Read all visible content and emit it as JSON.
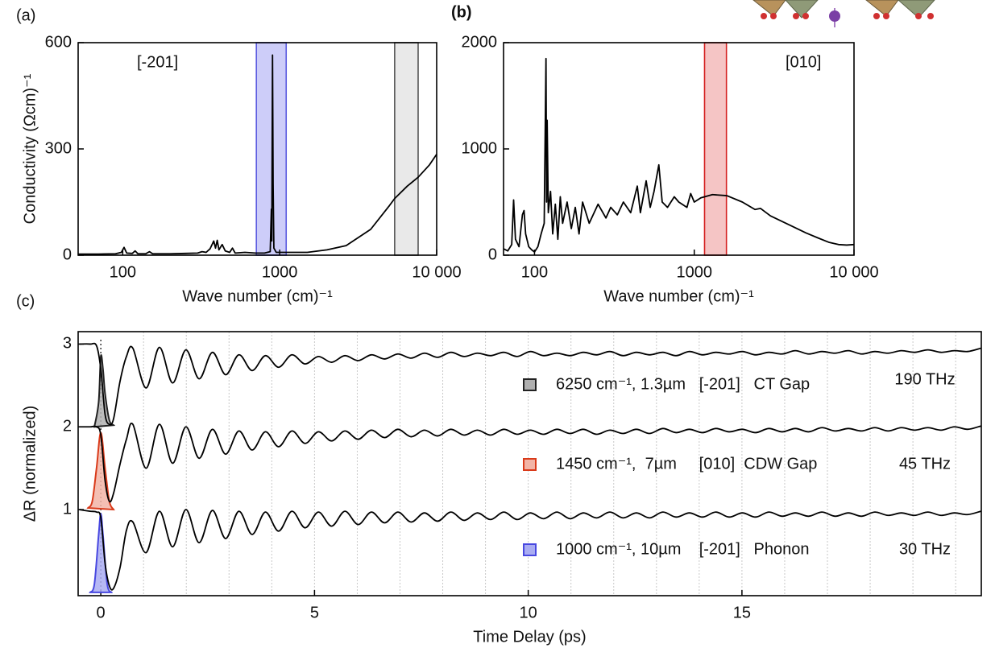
{
  "chart_data": [
    {
      "type": "line",
      "panel_label": "(a)",
      "x_scale": "log",
      "xlabel": "Wave number (cm)⁻¹",
      "ylabel": "Conductivity (Ωcm)⁻¹",
      "xlim": [
        52,
        10000
      ],
      "xticks": [
        100,
        1000,
        {
          "value": 10000,
          "label": "10 000"
        }
      ],
      "ylim": [
        0,
        600
      ],
      "yticks": [
        0,
        300,
        600
      ],
      "annotations": [
        {
          "text": "[-201]"
        }
      ],
      "bands": [
        {
          "range": [
            710,
            1100
          ],
          "fill": "rgba(90,90,235,0.3)",
          "stroke": "#5a5ae0"
        },
        {
          "range": [
            5400,
            7620
          ],
          "fill": "rgba(200,200,200,0.4)",
          "stroke": "#555555"
        }
      ],
      "series": [
        {
          "color": "#000000",
          "x": [
            52,
            70,
            90,
            98,
            102,
            106,
            115,
            120,
            125,
            140,
            148,
            155,
            200,
            250,
            300,
            320,
            340,
            360,
            380,
            390,
            400,
            410,
            430,
            450,
            480,
            500,
            520,
            600,
            700,
            800,
            870,
            885,
            890,
            895,
            900,
            908,
            918,
            950,
            1500,
            2000,
            2650,
            3800,
            5000,
            5400,
            6500,
            7620,
            9000,
            10000
          ],
          "values": [
            3,
            3,
            4,
            8,
            22,
            6,
            5,
            12,
            4,
            4,
            10,
            4,
            4,
            5,
            6,
            10,
            8,
            18,
            40,
            20,
            42,
            15,
            30,
            12,
            8,
            20,
            6,
            8,
            6,
            6,
            10,
            130,
            40,
            300,
            565,
            200,
            20,
            8,
            8,
            15,
            27,
            73,
            140,
            160,
            195,
            220,
            255,
            285
          ]
        }
      ]
    },
    {
      "type": "line",
      "panel_label": "(b)",
      "x_scale": "log",
      "xlabel": "Wave number (cm)⁻¹",
      "xlim": [
        64,
        10000
      ],
      "xticks": [
        100,
        1000,
        {
          "value": 10000,
          "label": "10 000"
        }
      ],
      "ylim": [
        0,
        2000
      ],
      "yticks": [
        0,
        1000,
        2000
      ],
      "annotations": [
        {
          "text": "[010]"
        }
      ],
      "bands": [
        {
          "range": [
            1160,
            1590
          ],
          "fill": "rgba(225,90,90,0.35)",
          "stroke": "#d42020"
        }
      ],
      "series": [
        {
          "color": "#000000",
          "x": [
            64,
            68,
            72,
            74,
            76,
            80,
            84,
            86,
            88,
            92,
            96,
            100,
            105,
            110,
            115,
            118,
            119,
            120,
            122,
            126,
            130,
            135,
            140,
            145,
            150,
            160,
            170,
            180,
            190,
            200,
            220,
            250,
            280,
            300,
            330,
            360,
            400,
            440,
            460,
            500,
            530,
            560,
            600,
            630,
            680,
            750,
            800,
            900,
            950,
            1000,
            1100,
            1300,
            1600,
            2000,
            2400,
            2600,
            3000,
            4000,
            5000,
            6000,
            7000,
            8000,
            9000,
            10000
          ],
          "values": [
            60,
            40,
            100,
            520,
            150,
            80,
            380,
            420,
            200,
            80,
            50,
            30,
            80,
            200,
            300,
            1850,
            500,
            1270,
            400,
            600,
            200,
            480,
            150,
            550,
            300,
            500,
            250,
            450,
            200,
            500,
            300,
            480,
            350,
            450,
            380,
            500,
            400,
            650,
            400,
            700,
            450,
            600,
            850,
            500,
            450,
            550,
            500,
            450,
            580,
            500,
            540,
            570,
            560,
            500,
            430,
            440,
            370,
            280,
            210,
            160,
            120,
            100,
            95,
            100
          ]
        }
      ]
    },
    {
      "type": "line",
      "panel_label": "(c)",
      "x_scale": "linear",
      "xlabel": "Time Delay (ps)",
      "ylabel": "ΔR (normalized)",
      "xlim": [
        -0.53,
        20.6
      ],
      "xticks": [
        0,
        5,
        10,
        15
      ],
      "minor_xticks": [
        1,
        2,
        3,
        4,
        5,
        6,
        7,
        8,
        9,
        10,
        11,
        12,
        13,
        14,
        15,
        16,
        17,
        18,
        19,
        20
      ],
      "ylim": [
        -0.04,
        3.15
      ],
      "yticks": [
        1,
        2,
        3
      ],
      "x": [
        -0.5,
        -0.25,
        -0.1,
        0,
        0.1,
        0.2,
        0.3,
        0.45,
        0.6,
        0.75,
        1.06,
        1.37,
        1.68,
        1.99,
        2.3,
        2.61,
        2.92,
        3.23,
        3.54,
        3.85,
        4.16,
        4.47,
        4.78,
        5.09,
        5.4,
        5.71,
        6.02,
        6.33,
        6.64,
        6.95,
        7.26,
        7.57,
        7.88,
        8.19,
        8.5,
        8.81,
        9.12,
        9.43,
        9.74,
        10.05,
        10.36,
        10.67,
        10.98,
        11.29,
        11.6,
        11.91,
        12.22,
        12.53,
        12.84,
        13.15,
        13.46,
        13.77,
        14.08,
        14.39,
        14.7,
        15.01,
        15.32,
        15.63,
        15.94,
        16.25,
        16.56,
        16.87,
        17.18,
        17.49,
        17.8,
        18.11,
        18.42,
        18.73,
        19.04,
        19.35,
        19.66,
        19.97,
        20.28,
        20.59
      ],
      "annotations": [
        {
          "text": "190 THz",
          "color": "#1a9ad6"
        },
        {
          "text": "45 THz",
          "color": "#1a9ad6"
        },
        {
          "text": "30 THz",
          "color": "#f0932b"
        }
      ],
      "series": [
        {
          "name": "6250 cm⁻¹, 1.3µm   [-201]   CT Gap",
          "color": "#b0b0b0",
          "stroke": "#222222",
          "line_color": "#000000",
          "values": [
            3.0,
            3.0,
            2.98,
            2.7,
            2.15,
            2.03,
            2.1,
            2.55,
            2.85,
            2.95,
            2.47,
            2.96,
            2.53,
            2.93,
            2.58,
            2.9,
            2.63,
            2.87,
            2.68,
            2.86,
            2.72,
            2.87,
            2.76,
            2.85,
            2.78,
            2.86,
            2.8,
            2.87,
            2.82,
            2.88,
            2.83,
            2.89,
            2.84,
            2.9,
            2.85,
            2.89,
            2.86,
            2.9,
            2.85,
            2.91,
            2.86,
            2.89,
            2.86,
            2.9,
            2.87,
            2.91,
            2.86,
            2.9,
            2.87,
            2.9,
            2.86,
            2.91,
            2.87,
            2.9,
            2.88,
            2.91,
            2.87,
            2.9,
            2.88,
            2.92,
            2.88,
            2.91,
            2.89,
            2.92,
            2.88,
            2.91,
            2.89,
            2.92,
            2.9,
            2.93,
            2.9,
            2.92,
            2.91,
            2.95
          ],
          "pulse_x": [
            -0.15,
            -0.05,
            0,
            0.05,
            0.1,
            0.2,
            0.3
          ],
          "pulse_values": [
            2.0,
            2.3,
            2.85,
            2.7,
            2.4,
            2.08,
            2.02
          ]
        },
        {
          "name": "1450 cm⁻¹,  7µm     [010]  CDW Gap",
          "color": "#f2b4a6",
          "stroke": "#d93a1a",
          "line_color": "#000000",
          "values": [
            2.0,
            2.0,
            2.0,
            1.9,
            1.35,
            1.1,
            1.2,
            1.55,
            1.85,
            2.03,
            1.5,
            2.03,
            1.56,
            2.0,
            1.62,
            1.97,
            1.67,
            1.95,
            1.72,
            1.94,
            1.76,
            1.95,
            1.8,
            1.94,
            1.83,
            1.95,
            1.85,
            1.96,
            1.87,
            1.97,
            1.88,
            1.96,
            1.89,
            1.97,
            1.9,
            1.96,
            1.9,
            1.97,
            1.91,
            1.96,
            1.91,
            1.97,
            1.92,
            1.97,
            1.91,
            1.96,
            1.92,
            1.97,
            1.92,
            1.98,
            1.93,
            1.97,
            1.93,
            1.98,
            1.94,
            1.97,
            1.93,
            1.98,
            1.94,
            1.98,
            1.94,
            1.99,
            1.95,
            1.98,
            1.95,
            1.99,
            1.95,
            1.99,
            1.96,
            1.99,
            1.96,
            2.0,
            1.97,
            2.01
          ],
          "pulse_x": [
            -0.3,
            -0.2,
            -0.1,
            0,
            0.1,
            0.2,
            0.3
          ],
          "pulse_values": [
            1.02,
            1.1,
            1.5,
            1.93,
            1.5,
            1.1,
            1.0
          ]
        },
        {
          "name": "1000 cm⁻¹, 10µm    [-201]   Phonon",
          "color": "#a9acf2",
          "stroke": "#4848e0",
          "line_color": "#000000",
          "values": [
            1.0,
            0.98,
            0.97,
            0.9,
            0.35,
            0.08,
            0.05,
            0.3,
            0.75,
            0.85,
            0.48,
            0.98,
            0.55,
            1.0,
            0.6,
            0.99,
            0.65,
            0.98,
            0.7,
            0.97,
            0.74,
            0.98,
            0.78,
            0.97,
            0.8,
            0.98,
            0.82,
            0.97,
            0.84,
            0.97,
            0.85,
            0.96,
            0.86,
            0.97,
            0.87,
            0.96,
            0.88,
            0.97,
            0.88,
            0.96,
            0.89,
            0.97,
            0.89,
            0.96,
            0.9,
            0.97,
            0.9,
            0.96,
            0.9,
            0.97,
            0.91,
            0.96,
            0.91,
            0.97,
            0.91,
            0.96,
            0.91,
            0.97,
            0.92,
            0.96,
            0.92,
            0.97,
            0.92,
            0.96,
            0.92,
            0.97,
            0.93,
            0.96,
            0.93,
            0.97,
            0.93,
            0.96,
            0.94,
            0.98
          ],
          "pulse_x": [
            -0.25,
            -0.15,
            -0.05,
            0,
            0.05,
            0.15,
            0.25
          ],
          "pulse_values": [
            0.0,
            0.1,
            0.7,
            0.95,
            0.7,
            0.1,
            0.0
          ]
        }
      ]
    }
  ]
}
